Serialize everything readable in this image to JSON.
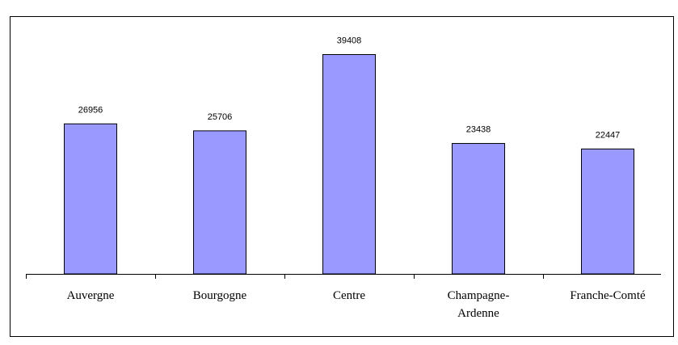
{
  "chart_data": {
    "type": "bar",
    "categories": [
      "Auvergne",
      "Bourgogne",
      "Centre",
      "Champagne-Ardenne",
      "Franche-Comté"
    ],
    "values": [
      26956,
      25706,
      39408,
      23438,
      22447
    ],
    "color": "#9999ff",
    "ylim": [
      0,
      45000
    ]
  }
}
